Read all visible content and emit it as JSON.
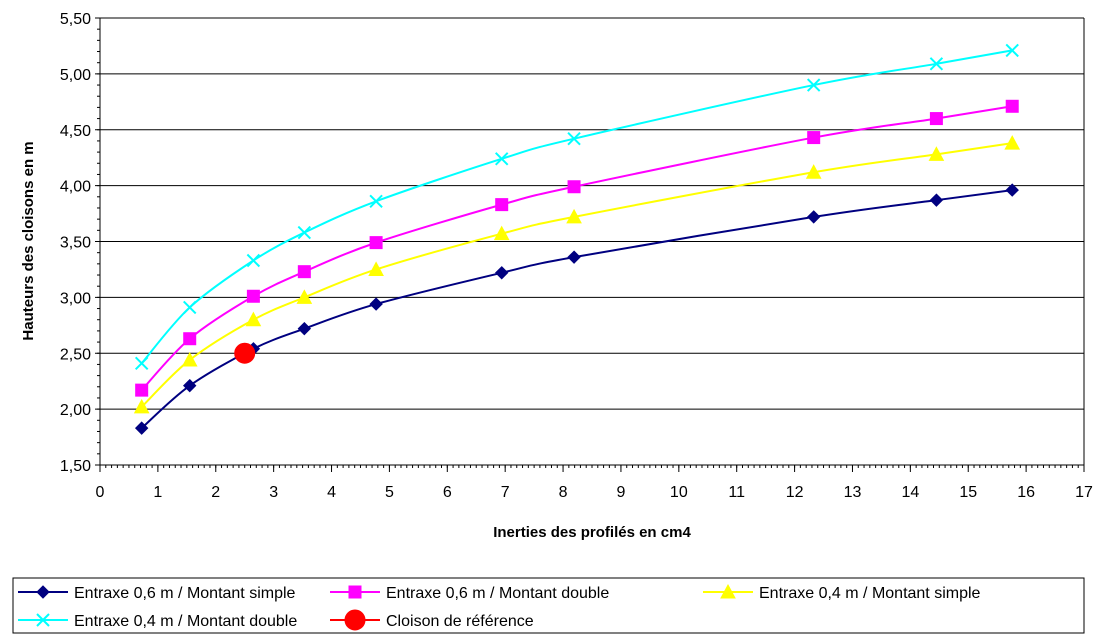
{
  "chart_data": {
    "type": "line",
    "title": "",
    "xlabel": "Inerties des profilés en cm4",
    "ylabel": "Hauteurs des cloisons en m",
    "xlim": [
      0,
      17
    ],
    "ylim": [
      1.5,
      5.5
    ],
    "x_ticks": [
      "0",
      "1",
      "2",
      "3",
      "4",
      "5",
      "6",
      "7",
      "8",
      "9",
      "10",
      "11",
      "12",
      "13",
      "14",
      "15",
      "16",
      "17"
    ],
    "y_ticks": [
      "1,50",
      "2,00",
      "2,50",
      "3,00",
      "3,50",
      "4,00",
      "4,50",
      "5,00",
      "5,50"
    ],
    "grid": "horizontal",
    "legend_position": "bottom",
    "series": [
      {
        "name": "Entraxe 0,6 m / Montant simple",
        "color": "#000080",
        "marker": "diamond",
        "x": [
          0.72,
          1.55,
          2.65,
          3.53,
          4.77,
          6.94,
          8.19,
          12.33,
          14.45,
          15.76
        ],
        "y": [
          1.83,
          2.21,
          2.54,
          2.72,
          2.94,
          3.22,
          3.36,
          3.72,
          3.87,
          3.96
        ]
      },
      {
        "name": "Entraxe 0,6 m / Montant double",
        "color": "#ff00ff",
        "marker": "square",
        "x": [
          0.72,
          1.55,
          2.65,
          3.53,
          4.77,
          6.94,
          8.19,
          12.33,
          14.45,
          15.76
        ],
        "y": [
          2.17,
          2.63,
          3.01,
          3.23,
          3.49,
          3.83,
          3.99,
          4.43,
          4.6,
          4.71
        ]
      },
      {
        "name": "Entraxe 0,4 m / Montant simple",
        "color": "#ffff00",
        "marker": "triangle",
        "x": [
          0.72,
          1.55,
          2.65,
          3.53,
          4.77,
          6.94,
          8.19,
          12.33,
          14.45,
          15.76
        ],
        "y": [
          2.02,
          2.44,
          2.8,
          3.0,
          3.25,
          3.57,
          3.72,
          4.12,
          4.28,
          4.38
        ]
      },
      {
        "name": "Entraxe 0,4 m / Montant double",
        "color": "#00ffff",
        "marker": "x",
        "x": [
          0.72,
          1.55,
          2.65,
          3.53,
          4.77,
          6.94,
          8.19,
          12.33,
          14.45,
          15.76
        ],
        "y": [
          2.41,
          2.91,
          3.33,
          3.58,
          3.86,
          4.24,
          4.42,
          4.9,
          5.09,
          5.21
        ]
      },
      {
        "name": "Cloison de référence",
        "color": "#ff0000",
        "marker": "circle",
        "x": [
          2.5
        ],
        "y": [
          2.5
        ]
      }
    ]
  }
}
